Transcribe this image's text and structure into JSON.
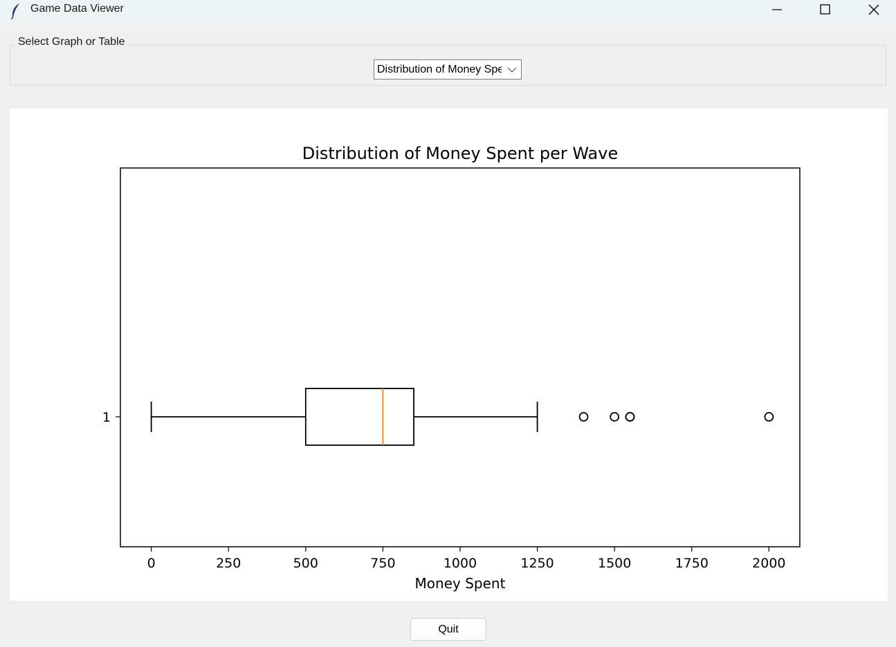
{
  "window": {
    "title": "Game Data Viewer",
    "icon": "feather-icon"
  },
  "selector": {
    "group_label": "Select Graph or Table",
    "selected_value": "Distribution of Money Spent per Wave"
  },
  "chart_data": {
    "type": "boxplot",
    "title": "Distribution of Money Spent per Wave",
    "xlabel": "Money Spent",
    "ylabel": "",
    "orientation": "horizontal",
    "xlim": [
      -100,
      2100
    ],
    "xticks": [
      0,
      250,
      500,
      750,
      1000,
      1250,
      1500,
      1750,
      2000
    ],
    "yticks": [
      "1"
    ],
    "boxes": [
      {
        "label": "1",
        "whisker_low": 0,
        "q1": 500,
        "median": 750,
        "q3": 850,
        "whisker_high": 1250,
        "outliers": [
          1400,
          1500,
          1550,
          1550,
          2000
        ]
      }
    ],
    "median_color": "#ff7f0e",
    "grid": false
  },
  "footer": {
    "quit_label": "Quit"
  }
}
